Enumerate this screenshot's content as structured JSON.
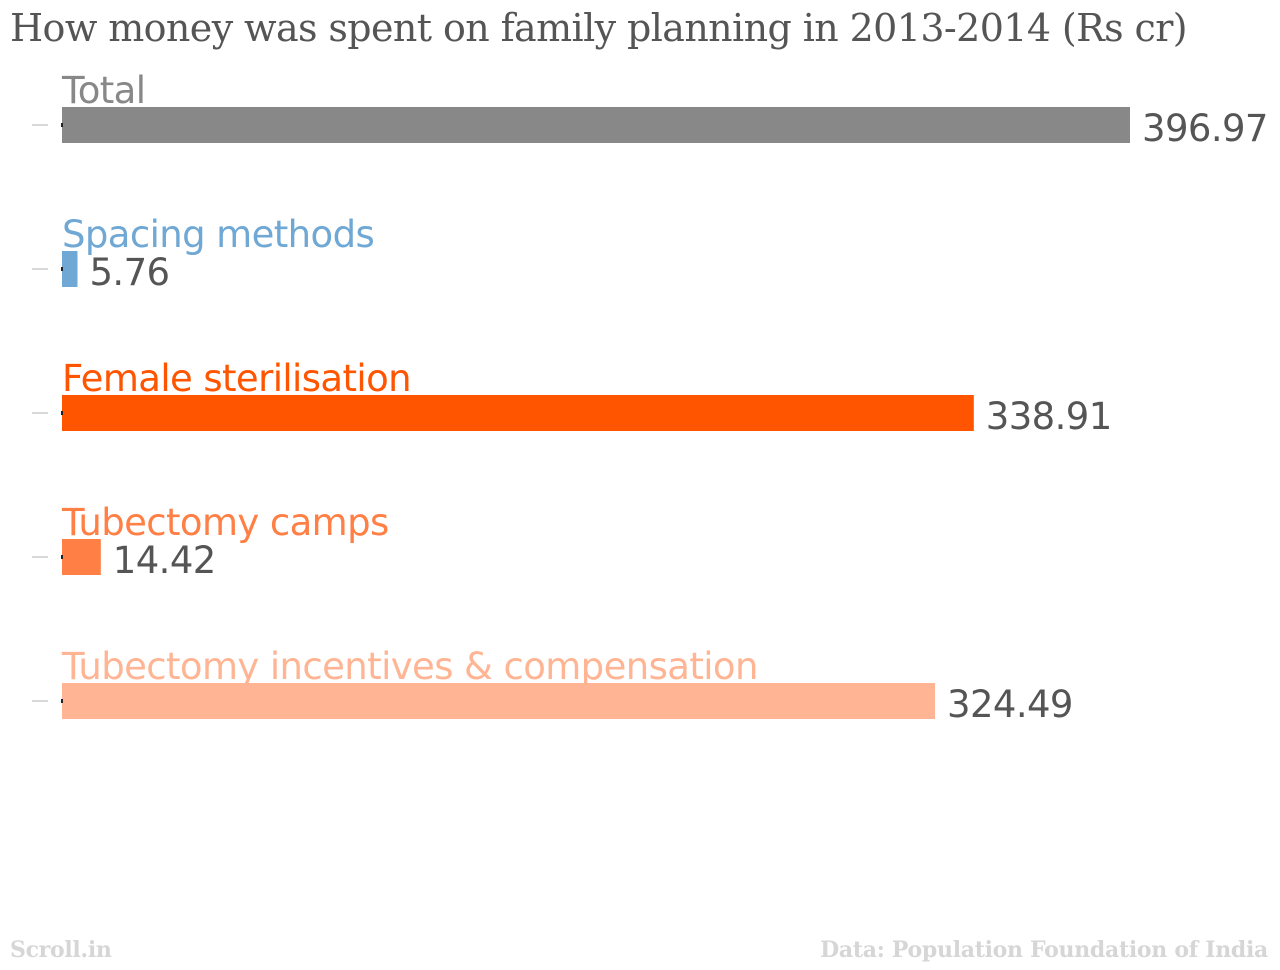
{
  "chart_data": {
    "type": "bar",
    "orientation": "horizontal",
    "title": "How money was spent on family planning in 2013-2014 (Rs cr)",
    "categories": [
      "Total",
      "Spacing methods",
      "Female sterilisation",
      "Tubectomy camps",
      "Tubectomy incentives & compensation"
    ],
    "values": [
      396.97,
      5.76,
      338.91,
      14.42,
      324.49
    ],
    "value_labels": [
      "396.97",
      "5.76",
      "338.91",
      "14.42",
      "324.49"
    ],
    "colors": [
      "#888888",
      "#6fa8d4",
      "#ff5500",
      "#ff7f45",
      "#ffb594"
    ],
    "label_colors": [
      "#888888",
      "#6fa8d4",
      "#ff5500",
      "#ff7f45",
      "#ffb594"
    ],
    "value_label_color": "#555555",
    "xlim": [
      0,
      396.97
    ],
    "grid": false,
    "legend": "none"
  },
  "footer": {
    "brand": "Scroll.in",
    "source": "Data: Population Foundation of India"
  }
}
